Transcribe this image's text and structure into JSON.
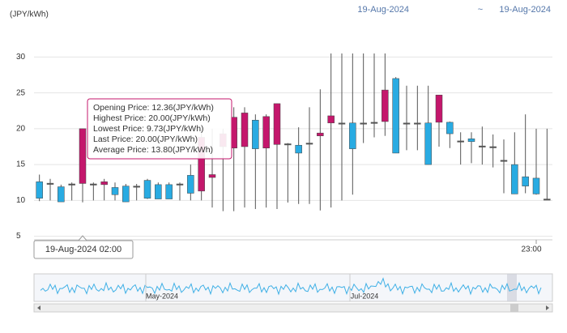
{
  "chart_data": {
    "type": "candlestick",
    "y_axis_label": "(JPY/kWh)",
    "range_from": "19-Aug-2024",
    "range_separator": "~",
    "range_to": "19-Aug-2024",
    "categories": [
      null,
      null,
      null,
      null,
      null,
      null,
      null,
      null,
      null,
      null,
      null,
      null,
      null,
      null,
      null,
      null,
      null,
      null,
      null,
      null,
      null,
      null,
      null,
      null,
      null,
      null,
      null,
      null,
      null,
      null,
      null,
      null,
      null,
      null,
      null,
      null,
      null,
      null,
      null,
      null,
      null,
      null,
      null,
      null,
      null,
      null,
      "23:00",
      null
    ],
    "open": [
      12.6,
      12.4,
      11.9,
      12.3,
      12.36,
      12.3,
      12.2,
      11.8,
      12.0,
      12.0,
      12.8,
      12.2,
      12.2,
      12.3,
      13.5,
      11.3,
      13.2,
      17.5,
      17.3,
      17.5,
      21.2,
      17.3,
      17.8,
      17.9,
      17.7,
      18.0,
      19.0,
      20.8,
      20.8,
      20.8,
      20.8,
      20.9,
      21.0,
      27.0,
      20.8,
      20.8,
      20.8,
      20.9,
      20.9,
      18.3,
      18.6,
      17.6,
      17.5,
      15.6,
      15.0,
      13.3,
      13.1,
      10.2
    ],
    "high": [
      13.6,
      13.0,
      12.2,
      12.5,
      20.0,
      12.5,
      13.0,
      12.5,
      12.3,
      12.3,
      13.0,
      12.5,
      12.5,
      12.5,
      15.0,
      20.0,
      20.0,
      20.0,
      23.0,
      23.0,
      22.0,
      22.0,
      23.5,
      18.0,
      20.2,
      23.0,
      25.5,
      30.5,
      30.5,
      30.5,
      30.5,
      30.5,
      30.5,
      27.2,
      26.0,
      26.0,
      26.0,
      24.7,
      21.0,
      19.5,
      19.5,
      20.3,
      19.2,
      18.5,
      19.5,
      22.0,
      20.0,
      20.0
    ],
    "low": [
      9.9,
      10.0,
      9.8,
      10.0,
      9.73,
      10.0,
      10.0,
      10.0,
      9.8,
      10.0,
      10.2,
      10.2,
      10.2,
      10.0,
      10.0,
      10.0,
      9.0,
      8.5,
      8.5,
      9.0,
      8.8,
      9.0,
      8.8,
      9.7,
      9.5,
      9.5,
      8.6,
      9.0,
      10.0,
      10.8,
      18.0,
      18.8,
      19.0,
      16.6,
      17.0,
      17.0,
      15.0,
      17.5,
      17.3,
      15.0,
      15.2,
      15.0,
      14.6,
      11.0,
      10.9,
      11.0,
      10.8,
      10.2
    ],
    "close": [
      10.3,
      12.4,
      9.8,
      12.3,
      20.0,
      12.3,
      12.6,
      10.8,
      9.8,
      12.0,
      10.3,
      10.2,
      10.2,
      12.3,
      11.0,
      18.8,
      13.6,
      19.3,
      21.6,
      22.2,
      17.2,
      21.7,
      23.5,
      17.9,
      16.6,
      18.0,
      19.4,
      21.8,
      20.8,
      17.2,
      20.8,
      20.9,
      25.4,
      16.6,
      20.8,
      20.8,
      15.0,
      24.7,
      19.3,
      18.3,
      18.2,
      17.6,
      17.5,
      15.6,
      10.9,
      12.0,
      10.9,
      10.2
    ],
    "up_color": "#c4176c",
    "down_color": "#29abe2",
    "doji_color": "#555555",
    "ylim": [
      4.5,
      34
    ],
    "yticks": [
      5,
      10,
      15,
      20,
      25,
      30
    ],
    "grid": true,
    "tooltip": {
      "lines": [
        "Opening Price: 12.36(JPY/kWh)",
        "Highest Price: 20.00(JPY/kWh)",
        "Lowest Price: 9.73(JPY/kWh)",
        "Last Price: 20.00(JPY/kWh)",
        "Average Price: 13.80(JPY/kWh)"
      ],
      "x_label": "19-Aug-2024 02:00"
    },
    "navigator": {
      "labels": [
        "May-2024",
        "Jul-2024"
      ]
    }
  }
}
